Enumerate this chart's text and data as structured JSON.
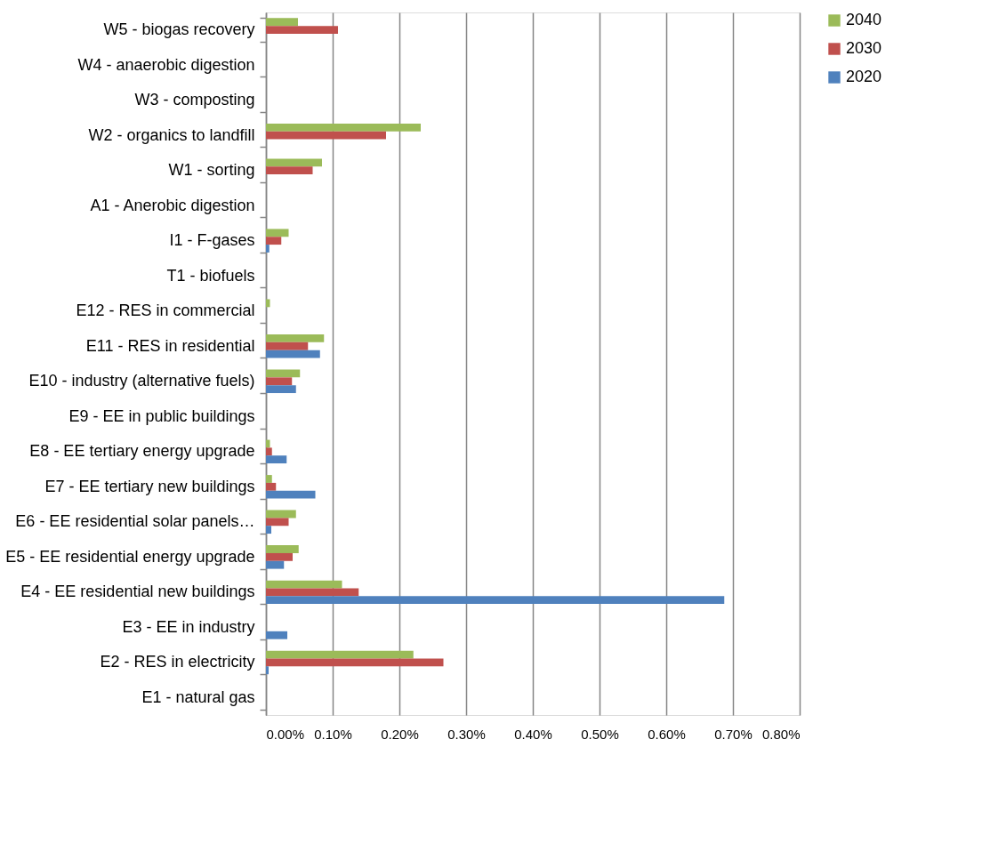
{
  "chart_data": {
    "type": "bar",
    "orientation": "horizontal",
    "categories": [
      "W5 - biogas recovery",
      "W4 - anaerobic digestion",
      "W3 - composting",
      "W2 - organics to landfill",
      "W1 - sorting",
      "A1 - Anerobic digestion",
      "I1 - F-gases",
      "T1 - biofuels",
      "E12 - RES in commercial",
      "E11 - RES in residential",
      "E10 - industry (alternative fuels)",
      "E9 - EE in public buildings",
      "E8 - EE tertiary energy upgrade",
      "E7 - EE tertiary new buildings",
      "E6 - EE residential solar panels…",
      "E5 - EE residential energy upgrade",
      "E4 - EE residential new buildings",
      "E3 - EE in industry",
      "E2 - RES in electricity",
      "E1 - natural gas"
    ],
    "series": [
      {
        "name": "2040",
        "color": "#9bbb59",
        "values": [
          0.048,
          0,
          0,
          0.232,
          0.084,
          0,
          0.034,
          0,
          0.006,
          0.087,
          0.051,
          0,
          0.006,
          0.009,
          0.045,
          0.049,
          0.114,
          0,
          0.221,
          0
        ]
      },
      {
        "name": "2030",
        "color": "#c0504d",
        "values": [
          0.108,
          0,
          0,
          0.18,
          0.07,
          0,
          0.023,
          0,
          0,
          0.063,
          0.039,
          0,
          0.009,
          0.015,
          0.034,
          0.04,
          0.139,
          0,
          0.266,
          0
        ]
      },
      {
        "name": "2020",
        "color": "#4f81bd",
        "values": [
          0,
          0,
          0,
          0,
          0,
          0,
          0.005,
          0,
          0,
          0.081,
          0.045,
          0,
          0.031,
          0.074,
          0.008,
          0.027,
          0.687,
          0.032,
          0.004,
          0
        ]
      }
    ],
    "xlim": [
      0,
      0.8
    ],
    "xticks": [
      {
        "value": 0,
        "label": "0.00%"
      },
      {
        "value": 0.1,
        "label": "0.10%"
      },
      {
        "value": 0.2,
        "label": "0.20%"
      },
      {
        "value": 0.3,
        "label": "0.30%"
      },
      {
        "value": 0.4,
        "label": "0.40%"
      },
      {
        "value": 0.5,
        "label": "0.50%"
      },
      {
        "value": 0.6,
        "label": "0.60%"
      },
      {
        "value": 0.7,
        "label": "0.70%"
      },
      {
        "value": 0.8,
        "label": "0.80%"
      }
    ],
    "grid": "x",
    "legend": "right"
  }
}
